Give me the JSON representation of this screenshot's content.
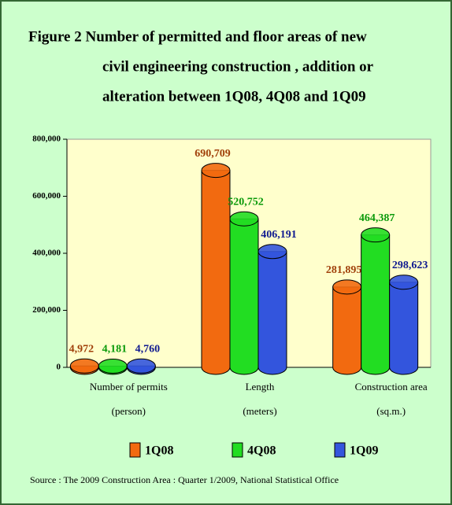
{
  "chart_data": {
    "type": "bar3d-cylinder",
    "title": [
      "Figure 2  Number of permitted and floor areas of new",
      "civil engineering construction , addition or",
      "alteration  between 1Q08, 4Q08 and 1Q09"
    ],
    "categories": [
      [
        "Number of permits",
        "(person)"
      ],
      [
        "Length",
        "(meters)"
      ],
      [
        "Construction area",
        "(sq.m.)"
      ]
    ],
    "series": [
      {
        "name": "1Q08",
        "color": "#f26a10",
        "label_color": "#a0400a",
        "values": [
          4972,
          690709,
          281895
        ],
        "value_labels": [
          "4,972",
          "690,709",
          "281,895"
        ]
      },
      {
        "name": "4Q08",
        "color": "#22dd22",
        "label_color": "#0a9a0a",
        "values": [
          4181,
          520752,
          464387
        ],
        "value_labels": [
          "4,181",
          "520,752",
          "464,387"
        ]
      },
      {
        "name": "1Q09",
        "color": "#3355dd",
        "label_color": "#101a90",
        "values": [
          4760,
          406191,
          298623
        ],
        "value_labels": [
          "4,760",
          "406,191",
          "298,623"
        ]
      }
    ],
    "ylim": [
      0,
      800000
    ],
    "yticks": [
      {
        "value": 0,
        "label": "0"
      },
      {
        "value": 200000,
        "label": "200,000"
      },
      {
        "value": 400000,
        "label": "400,000"
      },
      {
        "value": 600000,
        "label": "600,000"
      },
      {
        "value": 800000,
        "label": "800,000"
      }
    ],
    "source": "Source : The 2009 Construction Area : Quarter 1/2009, National Statistical Office"
  }
}
